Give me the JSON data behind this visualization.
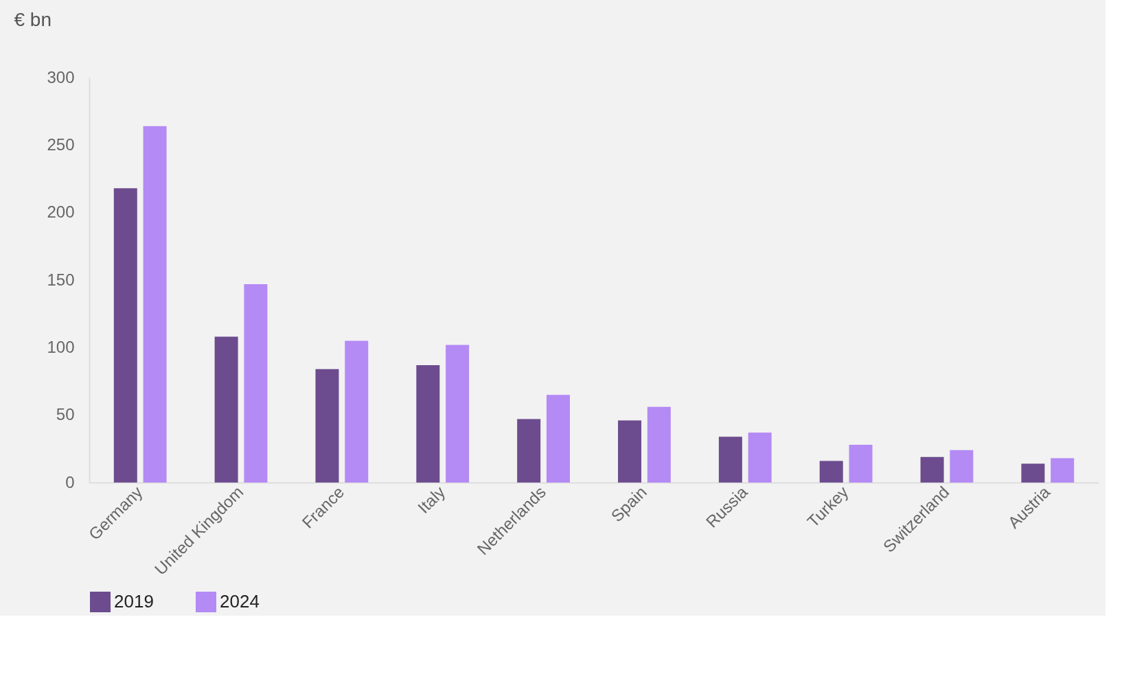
{
  "chart_data": {
    "type": "bar",
    "ylabel": "€ bn",
    "categories": [
      "Germany",
      "United Kingdom",
      "France",
      "Italy",
      "Netherlands",
      "Spain",
      "Russia",
      "Turkey",
      "Switzerland",
      "Austria"
    ],
    "series": [
      {
        "name": "2019",
        "color": "#6c4c8e",
        "values": [
          218,
          108,
          84,
          87,
          47,
          46,
          34,
          16,
          19,
          14
        ]
      },
      {
        "name": "2024",
        "color": "#b48af5",
        "values": [
          264,
          147,
          105,
          102,
          65,
          56,
          37,
          28,
          24,
          18
        ]
      }
    ],
    "ylim": [
      0,
      300
    ],
    "yticks": [
      0,
      50,
      100,
      150,
      200,
      250,
      300
    ],
    "grid": false,
    "legend": "bottom"
  }
}
